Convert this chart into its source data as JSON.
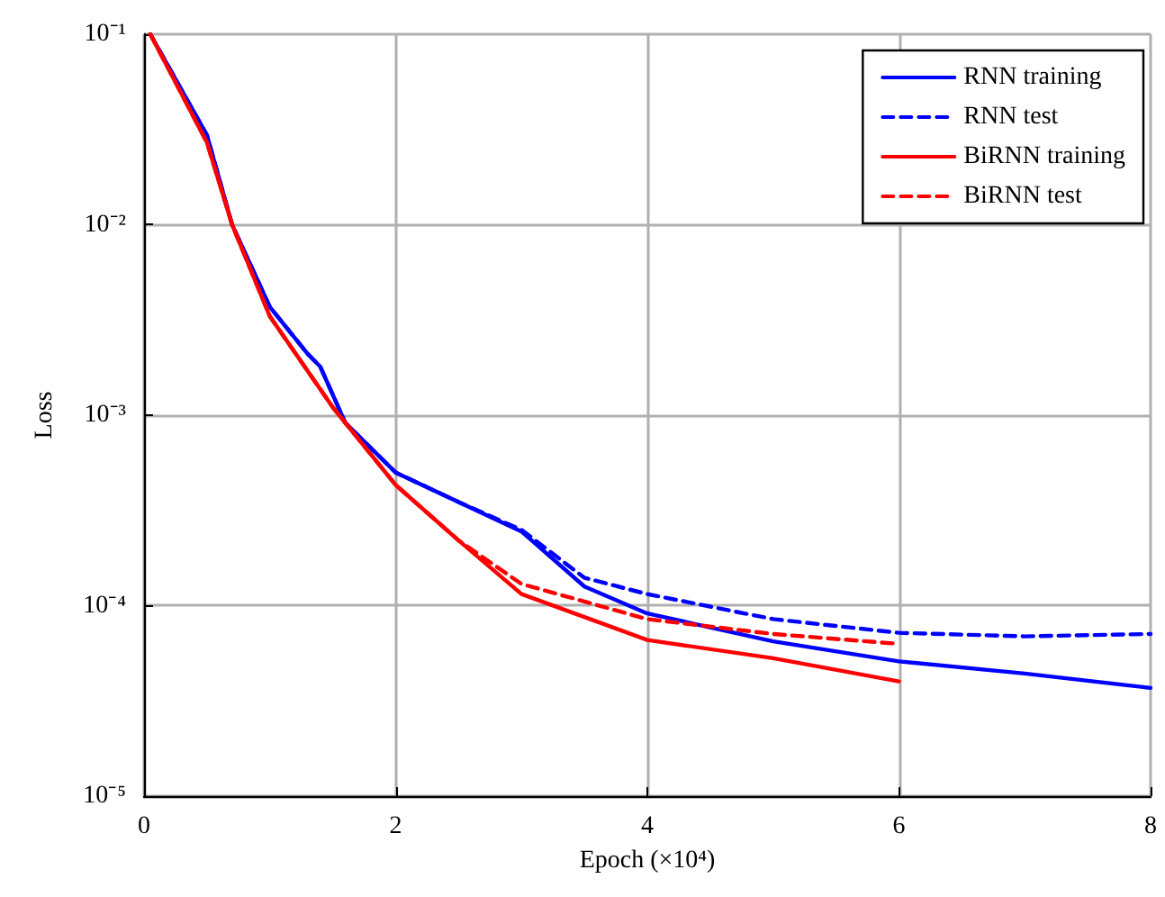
{
  "chart_data": {
    "type": "line",
    "xlabel": "Epoch (×10⁴)",
    "ylabel": "Loss",
    "xlim": [
      0,
      8
    ],
    "xticks": [
      0,
      2,
      4,
      6,
      8
    ],
    "ylim": [
      1e-05,
      0.1
    ],
    "yticks": [
      {
        "value": 1e-05,
        "label": "10⁻⁵"
      },
      {
        "value": 0.0001,
        "label": "10⁻⁴"
      },
      {
        "value": 0.001,
        "label": "10⁻³"
      },
      {
        "value": 0.01,
        "label": "10⁻²"
      },
      {
        "value": 0.1,
        "label": "10⁻¹"
      }
    ],
    "log": "y",
    "grid": true,
    "legend": "top right",
    "marker": "none",
    "series": [
      {
        "name": "RNN training",
        "color": "#0000ff",
        "line_style": "solid",
        "x": [
          0.05,
          0.5,
          0.7,
          1.0,
          1.3,
          1.4,
          1.6,
          2.0,
          2.5,
          3.0,
          3.5,
          4.0,
          5.0,
          6.0,
          7.0,
          8.0
        ],
        "values": [
          0.1,
          0.0295,
          0.01,
          0.0037,
          0.0021,
          0.0018,
          0.00091,
          0.0005,
          0.00035,
          0.000245,
          0.000126,
          9.1e-05,
          6.5e-05,
          5.1e-05,
          4.4e-05,
          3.7e-05
        ]
      },
      {
        "name": "RNN test",
        "color": "#0000ff",
        "line_style": "dashed",
        "x": [
          0.05,
          0.5,
          0.7,
          1.0,
          1.3,
          1.4,
          1.6,
          2.0,
          2.5,
          3.0,
          3.5,
          4.0,
          5.0,
          6.0,
          7.0,
          8.0
        ],
        "values": [
          0.1,
          0.0295,
          0.01,
          0.0037,
          0.0021,
          0.0018,
          0.00091,
          0.0005,
          0.00035,
          0.00025,
          0.00014,
          0.000115,
          8.5e-05,
          7.2e-05,
          6.9e-05,
          7.1e-05
        ]
      },
      {
        "name": "BiRNN training",
        "color": "#ff0000",
        "line_style": "solid",
        "x": [
          0.05,
          0.5,
          0.7,
          1.0,
          1.5,
          2.0,
          2.5,
          3.0,
          4.0,
          5.0,
          6.0
        ],
        "values": [
          0.1,
          0.027,
          0.01,
          0.0033,
          0.0011,
          0.00043,
          0.00022,
          0.000115,
          6.6e-05,
          5.3e-05,
          4e-05
        ]
      },
      {
        "name": "BiRNN test",
        "color": "#ff0000",
        "line_style": "dashed",
        "x": [
          0.05,
          0.5,
          0.7,
          1.0,
          1.5,
          2.0,
          2.5,
          3.0,
          4.0,
          5.0,
          6.0
        ],
        "values": [
          0.1,
          0.027,
          0.01,
          0.0033,
          0.0011,
          0.00043,
          0.00022,
          0.00013,
          8.5e-05,
          7.1e-05,
          6.3e-05
        ]
      }
    ]
  }
}
